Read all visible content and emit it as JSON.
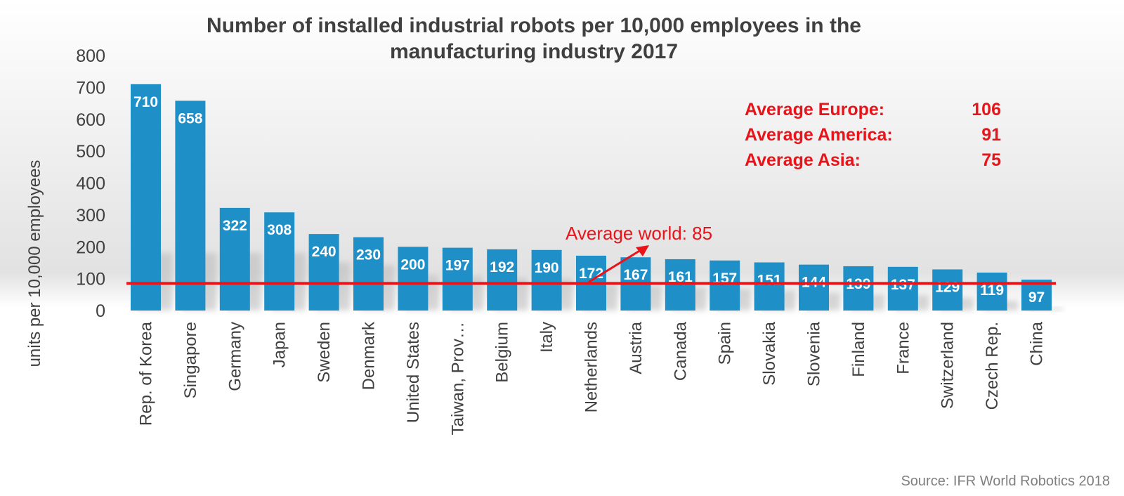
{
  "chart_data": {
    "type": "bar",
    "title_lines": [
      "Number of installed industrial robots per 10,000 employees in the",
      "manufacturing industry 2017"
    ],
    "xlabel": "",
    "ylabel": "units per 10,000 employees",
    "ylim": [
      0,
      800
    ],
    "yticks": [
      0,
      100,
      200,
      300,
      400,
      500,
      600,
      700,
      800
    ],
    "grid": false,
    "categories": [
      "Rep. of Korea",
      "Singapore",
      "Germany",
      "Japan",
      "Sweden",
      "Denmark",
      "United States",
      "Taiwan, Prov…",
      "Belgium",
      "Italy",
      "Netherlands",
      "Austria",
      "Canada",
      "Spain",
      "Slovakia",
      "Slovenia",
      "Finland",
      "France",
      "Switzerland",
      "Czech Rep.",
      "China"
    ],
    "values": [
      710,
      658,
      322,
      308,
      240,
      230,
      200,
      197,
      192,
      190,
      172,
      167,
      161,
      157,
      151,
      144,
      139,
      137,
      129,
      119,
      97
    ],
    "reference_line": {
      "label": "Average world: 85",
      "value": 85
    },
    "averages": [
      {
        "label": "Average Europe:",
        "value": "106"
      },
      {
        "label": "Average America:",
        "value": "91"
      },
      {
        "label": "Average Asia:",
        "value": "75"
      }
    ],
    "source": "Source: IFR World Robotics 2018"
  },
  "colors": {
    "bar": "#1f8fc8",
    "average_line": "#e8141a",
    "axis_text": "#404040",
    "value_label": "#ffffff"
  }
}
